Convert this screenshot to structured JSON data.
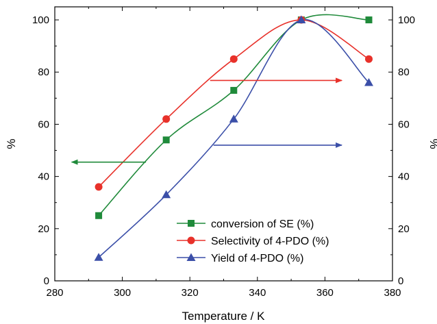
{
  "chart_data": {
    "type": "line",
    "xlabel": "Temperature / K",
    "ylabel_left": "%",
    "ylabel_right": "%",
    "xlim": [
      280,
      380
    ],
    "ylim": [
      0,
      105
    ],
    "xticks": [
      "280",
      "300",
      "320",
      "340",
      "360",
      "380"
    ],
    "yticks": [
      "0",
      "20",
      "40",
      "60",
      "80",
      "100"
    ],
    "legend_position": "bottom-right",
    "series": [
      {
        "name": "conversion of SE (%)",
        "color": "#1f8a3a",
        "marker": "square",
        "x": [
          293,
          313,
          333,
          353,
          373
        ],
        "y": [
          25,
          54,
          73,
          100,
          100
        ]
      },
      {
        "name": "Selectivity of 4-PDO (%)",
        "color": "#e8312a",
        "marker": "circle",
        "x": [
          293,
          313,
          333,
          353,
          373
        ],
        "y": [
          36,
          62,
          85,
          100,
          85
        ]
      },
      {
        "name": "Yield of 4-PDO (%)",
        "color": "#3b4fa8",
        "marker": "triangle",
        "x": [
          293,
          313,
          333,
          353,
          373
        ],
        "y": [
          9,
          33,
          62,
          100,
          76
        ]
      }
    ],
    "annotations": [
      {
        "type": "arrow",
        "direction": "left",
        "color": "#1f8a3a",
        "from": [
          307,
          45.5
        ],
        "to": [
          285,
          45.5
        ]
      },
      {
        "type": "arrow",
        "direction": "right",
        "color": "#e8312a",
        "from": [
          326,
          76.8
        ],
        "to": [
          365,
          76.8
        ]
      },
      {
        "type": "arrow",
        "direction": "right",
        "color": "#3b4fa8",
        "from": [
          327,
          52
        ],
        "to": [
          365,
          52
        ]
      }
    ]
  }
}
